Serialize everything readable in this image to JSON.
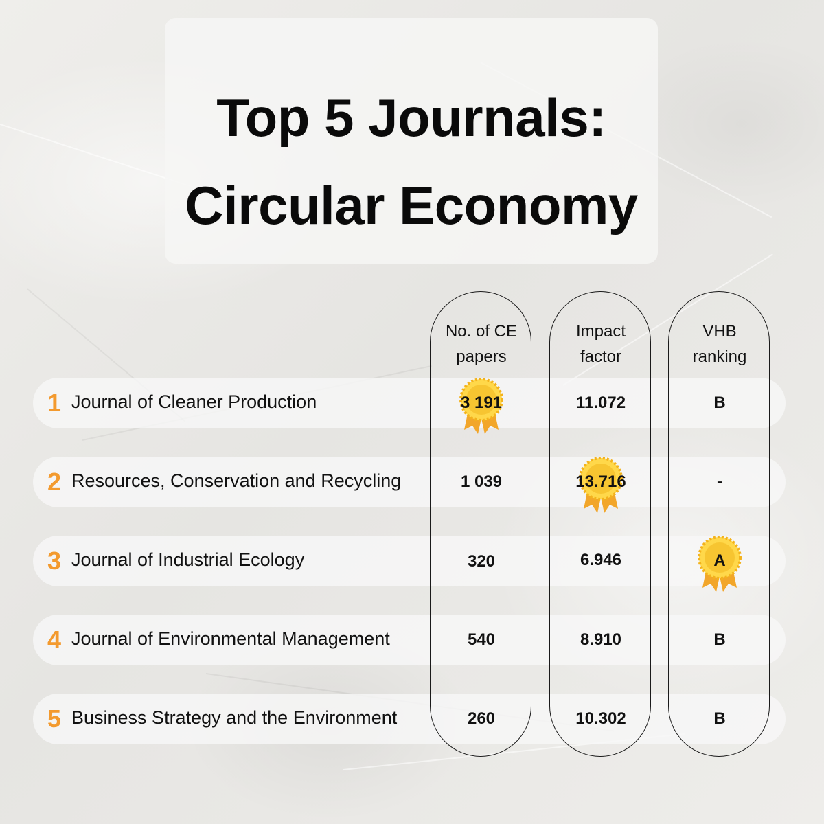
{
  "title": {
    "line1": "Top 5 Journals:",
    "line2": "Circular Economy"
  },
  "columns": [
    {
      "header_line1": "No. of CE",
      "header_line2": "papers"
    },
    {
      "header_line1": "Impact",
      "header_line2": "factor"
    },
    {
      "header_line1": "VHB",
      "header_line2": "ranking"
    }
  ],
  "rows": [
    {
      "rank": "1",
      "journal": "Journal of Cleaner Production",
      "papers": "3 191",
      "impact": "11.072",
      "vhb": "B"
    },
    {
      "rank": "2",
      "journal": "Resources, Conservation and Recycling",
      "papers": "1 039",
      "impact": "13.716",
      "vhb": "-"
    },
    {
      "rank": "3",
      "journal": "Journal of Industrial Ecology",
      "papers": "320",
      "impact": "6.946",
      "vhb": "A"
    },
    {
      "rank": "4",
      "journal": "Journal of Environmental Management",
      "papers": "540",
      "impact": "8.910",
      "vhb": "B"
    },
    {
      "rank": "5",
      "journal": "Business Strategy and the Environment",
      "papers": "260",
      "impact": "10.302",
      "vhb": "B"
    }
  ],
  "highlights": {
    "papers": "medal-icon",
    "impact": "medal-icon",
    "vhb": "medal-icon"
  },
  "colors": {
    "rank": "#f39a2e",
    "medal_gold": "#f7c531",
    "medal_ribbon": "#f2a62a",
    "text": "#111111"
  }
}
